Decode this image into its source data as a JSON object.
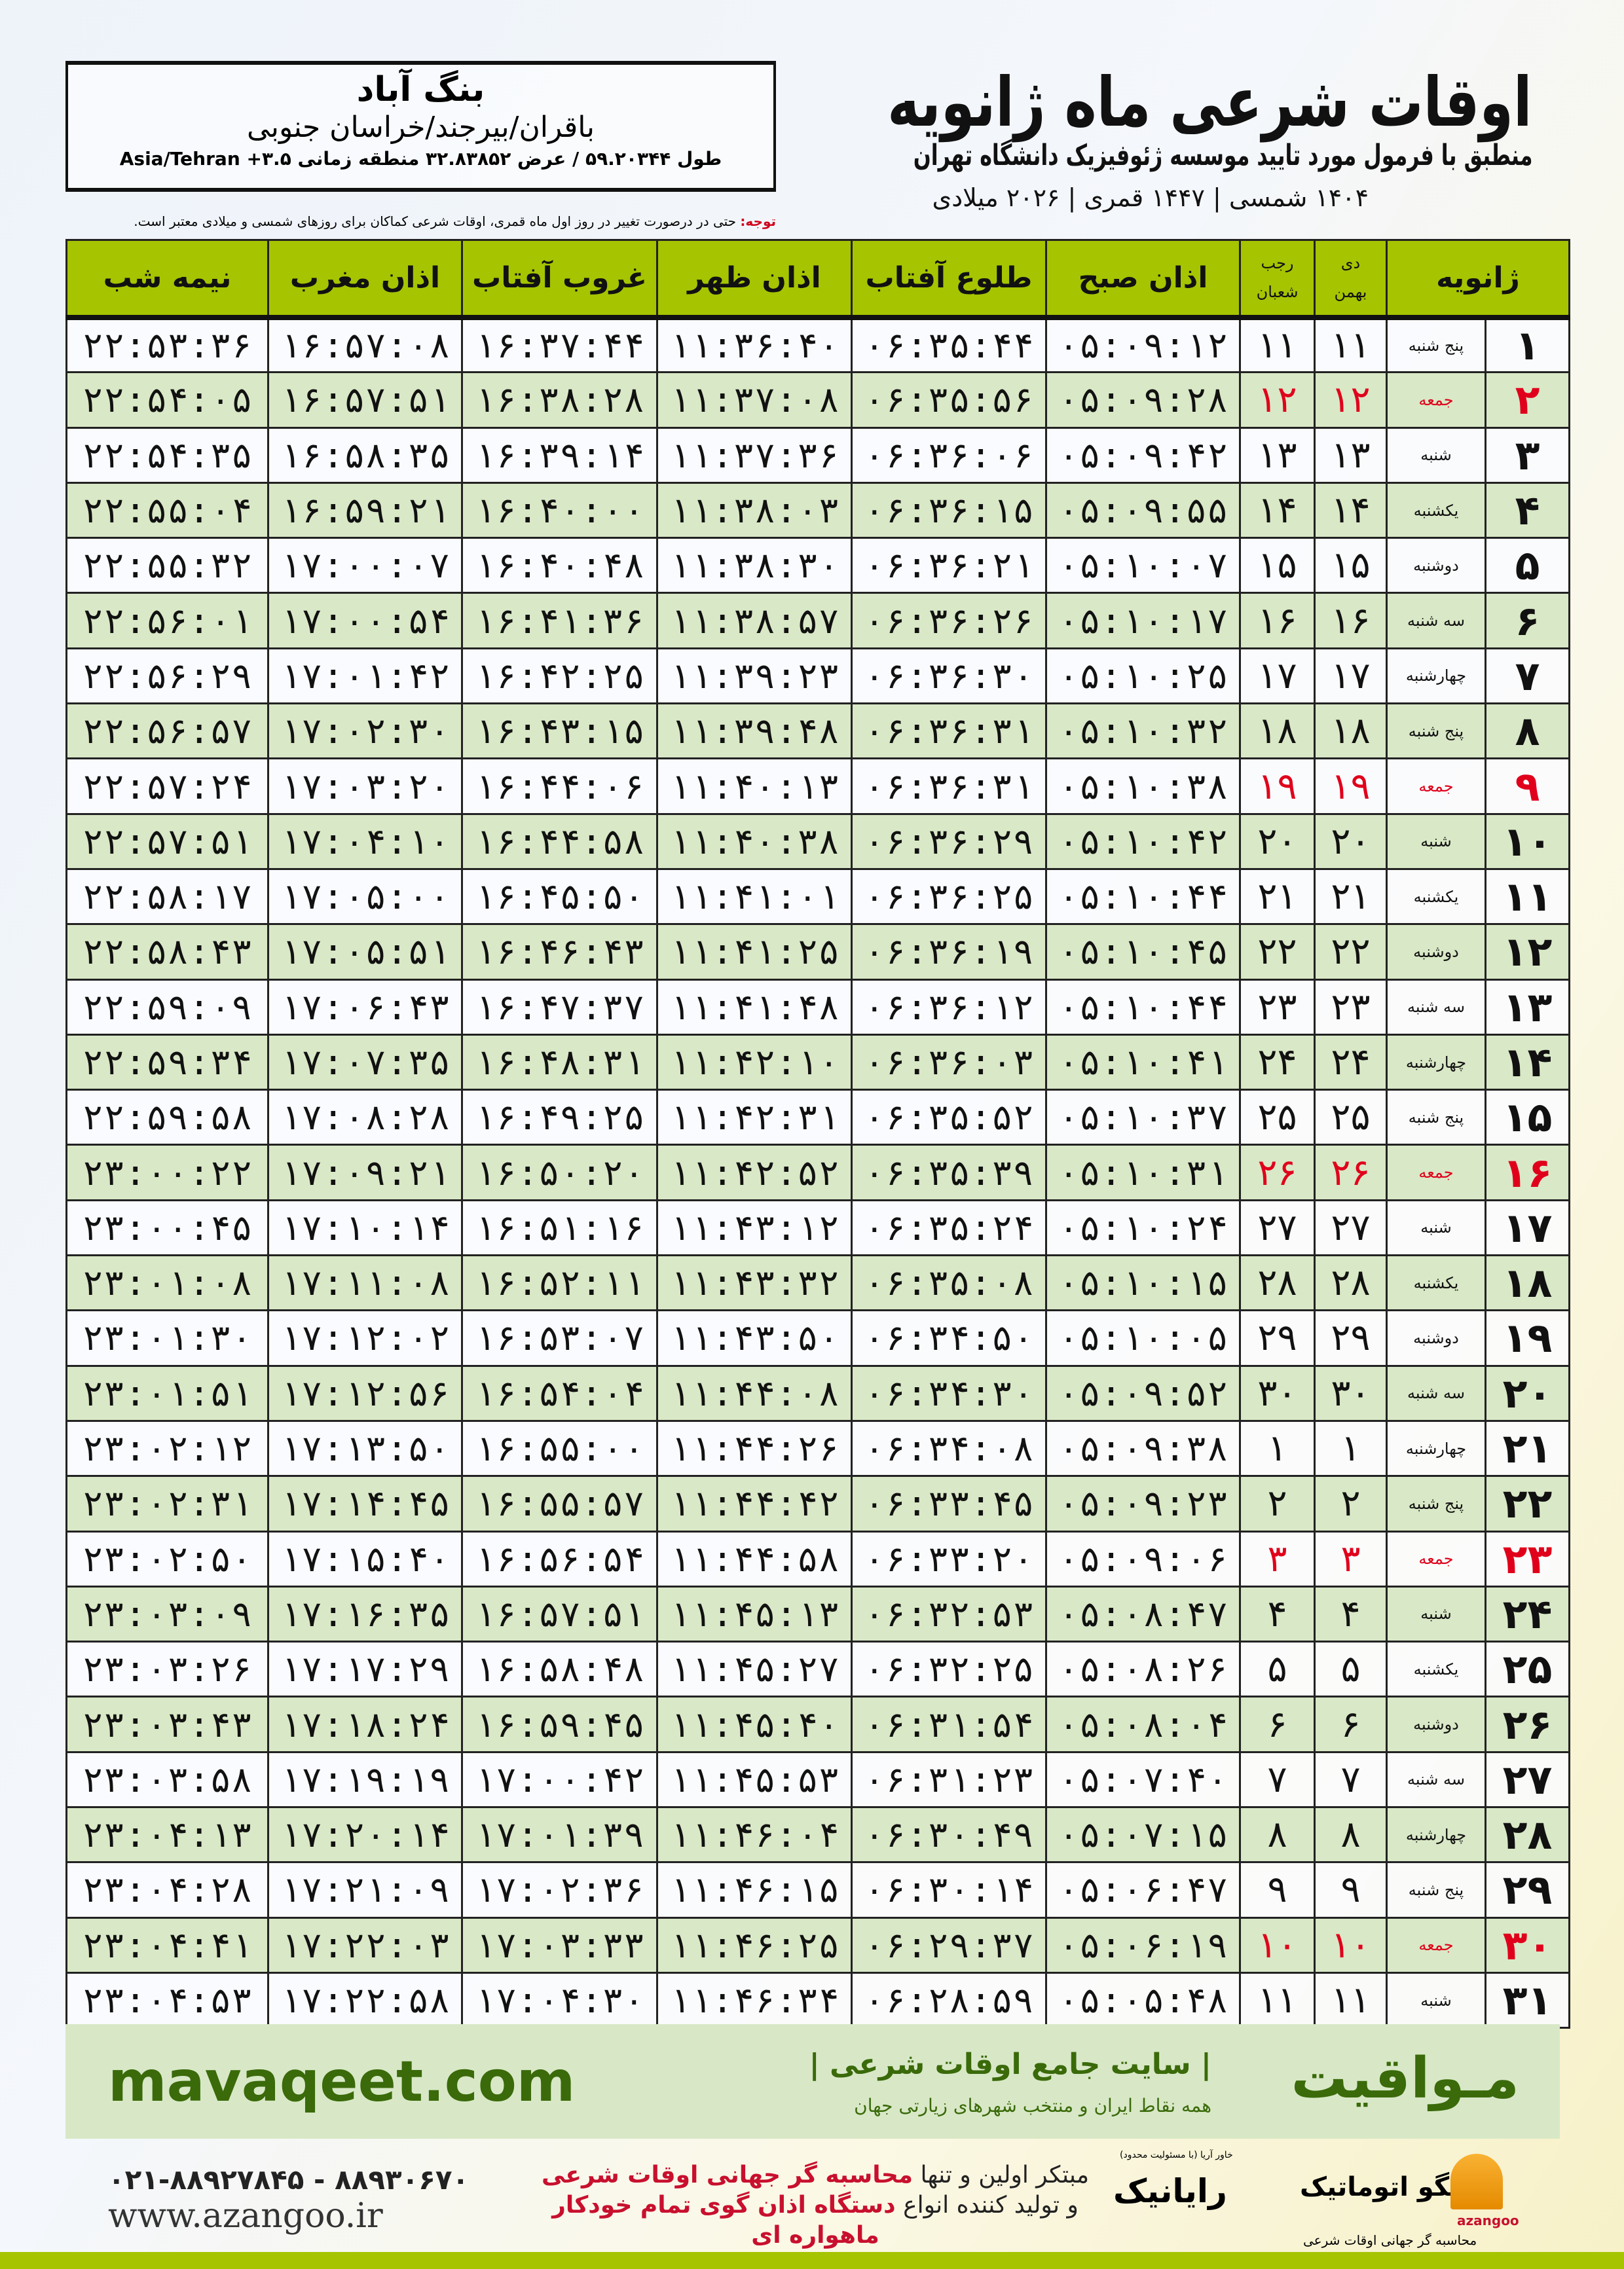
{
  "header": {
    "title": "اوقات شرعی ماه ژانویه",
    "subtitle": "منطبق با فرمول مورد تایید موسسه ژئوفیزیک دانشگاه تهران",
    "years": "۱۴۰۴ شمسی | ۱۴۴۷ قمری | ۲۰۲۶ میلادی"
  },
  "location": {
    "name": "بنگ آباد",
    "path": "باقران/بیرجند/خراسان جنوبی",
    "coords": "طول ۵۹.۲۰۳۴۴ / عرض ۳۲.۸۳۸۵۲ منطقه زمانی ۳.۵+ Asia/Tehran"
  },
  "note": {
    "label": "توجه:",
    "text": " حتی در درصورت تغییر در روز اول ماه قمری، اوقات شرعی کماکان برای روزهای شمسی و میلادی معتبر است."
  },
  "table": {
    "headers": {
      "midnight": "نیمه شب",
      "maghrib": "اذان مغرب",
      "sunset": "غروب آفتاب",
      "dhuhr": "اذان ظهر",
      "sunrise": "طلوع آفتاب",
      "fajr": "اذان صبح",
      "hijri_top": "رجب",
      "hijri_bottom": "شعبان",
      "shamsi_top": "دی",
      "shamsi_bottom": "بهمن",
      "gregorian": "ژانویه"
    },
    "friday_color": "#e0001b",
    "header_color": "#a6c400",
    "alt_row_color": "#d9e8c6",
    "rows": [
      [
        "۱",
        "پنج شنبه",
        "۱۱",
        "۱۱",
        "۰۵:۰۹:۱۲",
        "۰۶:۳۵:۴۴",
        "۱۱:۳۶:۴۰",
        "۱۶:۳۷:۴۴",
        "۱۶:۵۷:۰۸",
        "۲۲:۵۳:۳۶"
      ],
      [
        "۲",
        "جمعه",
        "۱۲",
        "۱۲",
        "۰۵:۰۹:۲۸",
        "۰۶:۳۵:۵۶",
        "۱۱:۳۷:۰۸",
        "۱۶:۳۸:۲۸",
        "۱۶:۵۷:۵۱",
        "۲۲:۵۴:۰۵"
      ],
      [
        "۳",
        "شنبه",
        "۱۳",
        "۱۳",
        "۰۵:۰۹:۴۲",
        "۰۶:۳۶:۰۶",
        "۱۱:۳۷:۳۶",
        "۱۶:۳۹:۱۴",
        "۱۶:۵۸:۳۵",
        "۲۲:۵۴:۳۵"
      ],
      [
        "۴",
        "یکشنبه",
        "۱۴",
        "۱۴",
        "۰۵:۰۹:۵۵",
        "۰۶:۳۶:۱۵",
        "۱۱:۳۸:۰۳",
        "۱۶:۴۰:۰۰",
        "۱۶:۵۹:۲۱",
        "۲۲:۵۵:۰۴"
      ],
      [
        "۵",
        "دوشنبه",
        "۱۵",
        "۱۵",
        "۰۵:۱۰:۰۷",
        "۰۶:۳۶:۲۱",
        "۱۱:۳۸:۳۰",
        "۱۶:۴۰:۴۸",
        "۱۷:۰۰:۰۷",
        "۲۲:۵۵:۳۲"
      ],
      [
        "۶",
        "سه شنبه",
        "۱۶",
        "۱۶",
        "۰۵:۱۰:۱۷",
        "۰۶:۳۶:۲۶",
        "۱۱:۳۸:۵۷",
        "۱۶:۴۱:۳۶",
        "۱۷:۰۰:۵۴",
        "۲۲:۵۶:۰۱"
      ],
      [
        "۷",
        "چهارشنبه",
        "۱۷",
        "۱۷",
        "۰۵:۱۰:۲۵",
        "۰۶:۳۶:۳۰",
        "۱۱:۳۹:۲۳",
        "۱۶:۴۲:۲۵",
        "۱۷:۰۱:۴۲",
        "۲۲:۵۶:۲۹"
      ],
      [
        "۸",
        "پنج شنبه",
        "۱۸",
        "۱۸",
        "۰۵:۱۰:۳۲",
        "۰۶:۳۶:۳۱",
        "۱۱:۳۹:۴۸",
        "۱۶:۴۳:۱۵",
        "۱۷:۰۲:۳۰",
        "۲۲:۵۶:۵۷"
      ],
      [
        "۹",
        "جمعه",
        "۱۹",
        "۱۹",
        "۰۵:۱۰:۳۸",
        "۰۶:۳۶:۳۱",
        "۱۱:۴۰:۱۳",
        "۱۶:۴۴:۰۶",
        "۱۷:۰۳:۲۰",
        "۲۲:۵۷:۲۴"
      ],
      [
        "۱۰",
        "شنبه",
        "۲۰",
        "۲۰",
        "۰۵:۱۰:۴۲",
        "۰۶:۳۶:۲۹",
        "۱۱:۴۰:۳۸",
        "۱۶:۴۴:۵۸",
        "۱۷:۰۴:۱۰",
        "۲۲:۵۷:۵۱"
      ],
      [
        "۱۱",
        "یکشنبه",
        "۲۱",
        "۲۱",
        "۰۵:۱۰:۴۴",
        "۰۶:۳۶:۲۵",
        "۱۱:۴۱:۰۱",
        "۱۶:۴۵:۵۰",
        "۱۷:۰۵:۰۰",
        "۲۲:۵۸:۱۷"
      ],
      [
        "۱۲",
        "دوشنبه",
        "۲۲",
        "۲۲",
        "۰۵:۱۰:۴۵",
        "۰۶:۳۶:۱۹",
        "۱۱:۴۱:۲۵",
        "۱۶:۴۶:۴۳",
        "۱۷:۰۵:۵۱",
        "۲۲:۵۸:۴۳"
      ],
      [
        "۱۳",
        "سه شنبه",
        "۲۳",
        "۲۳",
        "۰۵:۱۰:۴۴",
        "۰۶:۳۶:۱۲",
        "۱۱:۴۱:۴۸",
        "۱۶:۴۷:۳۷",
        "۱۷:۰۶:۴۳",
        "۲۲:۵۹:۰۹"
      ],
      [
        "۱۴",
        "چهارشنبه",
        "۲۴",
        "۲۴",
        "۰۵:۱۰:۴۱",
        "۰۶:۳۶:۰۳",
        "۱۱:۴۲:۱۰",
        "۱۶:۴۸:۳۱",
        "۱۷:۰۷:۳۵",
        "۲۲:۵۹:۳۴"
      ],
      [
        "۱۵",
        "پنج شنبه",
        "۲۵",
        "۲۵",
        "۰۵:۱۰:۳۷",
        "۰۶:۳۵:۵۲",
        "۱۱:۴۲:۳۱",
        "۱۶:۴۹:۲۵",
        "۱۷:۰۸:۲۸",
        "۲۲:۵۹:۵۸"
      ],
      [
        "۱۶",
        "جمعه",
        "۲۶",
        "۲۶",
        "۰۵:۱۰:۳۱",
        "۰۶:۳۵:۳۹",
        "۱۱:۴۲:۵۲",
        "۱۶:۵۰:۲۰",
        "۱۷:۰۹:۲۱",
        "۲۳:۰۰:۲۲"
      ],
      [
        "۱۷",
        "شنبه",
        "۲۷",
        "۲۷",
        "۰۵:۱۰:۲۴",
        "۰۶:۳۵:۲۴",
        "۱۱:۴۳:۱۲",
        "۱۶:۵۱:۱۶",
        "۱۷:۱۰:۱۴",
        "۲۳:۰۰:۴۵"
      ],
      [
        "۱۸",
        "یکشنبه",
        "۲۸",
        "۲۸",
        "۰۵:۱۰:۱۵",
        "۰۶:۳۵:۰۸",
        "۱۱:۴۳:۳۲",
        "۱۶:۵۲:۱۱",
        "۱۷:۱۱:۰۸",
        "۲۳:۰۱:۰۸"
      ],
      [
        "۱۹",
        "دوشنبه",
        "۲۹",
        "۲۹",
        "۰۵:۱۰:۰۵",
        "۰۶:۳۴:۵۰",
        "۱۱:۴۳:۵۰",
        "۱۶:۵۳:۰۷",
        "۱۷:۱۲:۰۲",
        "۲۳:۰۱:۳۰"
      ],
      [
        "۲۰",
        "سه شنبه",
        "۳۰",
        "۳۰",
        "۰۵:۰۹:۵۲",
        "۰۶:۳۴:۳۰",
        "۱۱:۴۴:۰۸",
        "۱۶:۵۴:۰۴",
        "۱۷:۱۲:۵۶",
        "۲۳:۰۱:۵۱"
      ],
      [
        "۲۱",
        "چهارشنبه",
        "۱",
        "۱",
        "۰۵:۰۹:۳۸",
        "۰۶:۳۴:۰۸",
        "۱۱:۴۴:۲۶",
        "۱۶:۵۵:۰۰",
        "۱۷:۱۳:۵۰",
        "۲۳:۰۲:۱۲"
      ],
      [
        "۲۲",
        "پنج شنبه",
        "۲",
        "۲",
        "۰۵:۰۹:۲۳",
        "۰۶:۳۳:۴۵",
        "۱۱:۴۴:۴۲",
        "۱۶:۵۵:۵۷",
        "۱۷:۱۴:۴۵",
        "۲۳:۰۲:۳۱"
      ],
      [
        "۲۳",
        "جمعه",
        "۳",
        "۳",
        "۰۵:۰۹:۰۶",
        "۰۶:۳۳:۲۰",
        "۱۱:۴۴:۵۸",
        "۱۶:۵۶:۵۴",
        "۱۷:۱۵:۴۰",
        "۲۳:۰۲:۵۰"
      ],
      [
        "۲۴",
        "شنبه",
        "۴",
        "۴",
        "۰۵:۰۸:۴۷",
        "۰۶:۳۲:۵۳",
        "۱۱:۴۵:۱۳",
        "۱۶:۵۷:۵۱",
        "۱۷:۱۶:۳۵",
        "۲۳:۰۳:۰۹"
      ],
      [
        "۲۵",
        "یکشنبه",
        "۵",
        "۵",
        "۰۵:۰۸:۲۶",
        "۰۶:۳۲:۲۵",
        "۱۱:۴۵:۲۷",
        "۱۶:۵۸:۴۸",
        "۱۷:۱۷:۲۹",
        "۲۳:۰۳:۲۶"
      ],
      [
        "۲۶",
        "دوشنبه",
        "۶",
        "۶",
        "۰۵:۰۸:۰۴",
        "۰۶:۳۱:۵۴",
        "۱۱:۴۵:۴۰",
        "۱۶:۵۹:۴۵",
        "۱۷:۱۸:۲۴",
        "۲۳:۰۳:۴۳"
      ],
      [
        "۲۷",
        "سه شنبه",
        "۷",
        "۷",
        "۰۵:۰۷:۴۰",
        "۰۶:۳۱:۲۳",
        "۱۱:۴۵:۵۳",
        "۱۷:۰۰:۴۲",
        "۱۷:۱۹:۱۹",
        "۲۳:۰۳:۵۸"
      ],
      [
        "۲۸",
        "چهارشنبه",
        "۸",
        "۸",
        "۰۵:۰۷:۱۵",
        "۰۶:۳۰:۴۹",
        "۱۱:۴۶:۰۴",
        "۱۷:۰۱:۳۹",
        "۱۷:۲۰:۱۴",
        "۲۳:۰۴:۱۳"
      ],
      [
        "۲۹",
        "پنج شنبه",
        "۹",
        "۹",
        "۰۵:۰۶:۴۷",
        "۰۶:۳۰:۱۴",
        "۱۱:۴۶:۱۵",
        "۱۷:۰۲:۳۶",
        "۱۷:۲۱:۰۹",
        "۲۳:۰۴:۲۸"
      ],
      [
        "۳۰",
        "جمعه",
        "۱۰",
        "۱۰",
        "۰۵:۰۶:۱۹",
        "۰۶:۲۹:۳۷",
        "۱۱:۴۶:۲۵",
        "۱۷:۰۳:۳۳",
        "۱۷:۲۲:۰۳",
        "۲۳:۰۴:۴۱"
      ],
      [
        "۳۱",
        "شنبه",
        "۱۱",
        "۱۱",
        "۰۵:۰۵:۴۸",
        "۰۶:۲۸:۵۹",
        "۱۱:۴۶:۳۴",
        "۱۷:۰۴:۳۰",
        "۱۷:۲۲:۵۸",
        "۲۳:۰۴:۵۳"
      ]
    ]
  },
  "footer": {
    "site": "mavaqeet.com",
    "brand": "مـواقیت",
    "tagline": "| سایت جامع اوقات شرعی |",
    "tagsub": "همه نقاط ایران و منتخب شهرهای زیارتی جهان",
    "phones": "۰۲۱-۸۸۹۲۷۸۴۵ - ۸۸۹۳۰۶۷۰",
    "www": "www.azangoo.ir",
    "promo1a": "مبتکر اولین و تنها ",
    "promo1b": "محاسبه گر جهانی اوقات شرعی",
    "promo2a": "و تولید کننده انواع ",
    "promo2b": "دستگاه اذان گوی تمام خودکار ماهواره ای",
    "rayanik": "رایانیک",
    "rayanik_sub": "(با مسئولیت محدود) خاور آریا",
    "azangoo": "اذانگو اتوماتیک",
    "azangoo_sub": "محاسبه گر جهانی اوقات شرعی",
    "azangoo_en": "azangoo",
    "accent": "#a6c400",
    "brand_green": "#3a6a0a"
  }
}
